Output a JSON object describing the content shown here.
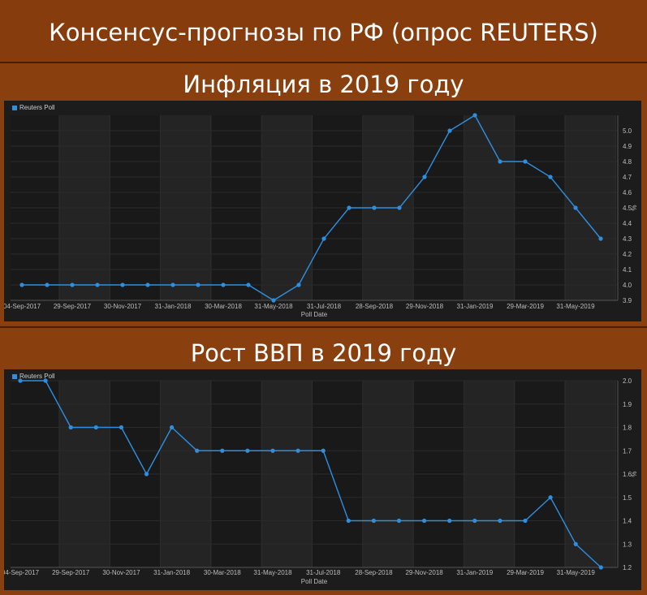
{
  "header": {
    "title": "Консенсус-прогнозы по РФ (опрос REUTERS)"
  },
  "chart_data": [
    {
      "type": "line",
      "title": "Инфляция в 2019 году",
      "xlabel": "Poll Date",
      "ylabel": "%",
      "legend": "top-left",
      "series": [
        {
          "name": "Reuters Poll",
          "color": "#2e8fe0",
          "values": [
            4.0,
            4.0,
            4.0,
            4.0,
            4.0,
            4.0,
            4.0,
            4.0,
            4.0,
            4.0,
            3.9,
            4.0,
            4.3,
            4.5,
            4.5,
            4.5,
            4.7,
            5.0,
            5.1,
            4.8,
            4.8,
            4.7,
            4.5,
            4.3
          ]
        }
      ],
      "x_tick_labels": [
        "04-Sep-2017",
        "29-Sep-2017",
        "30-Nov-2017",
        "31-Jan-2018",
        "30-Mar-2018",
        "31-May-2018",
        "31-Jul-2018",
        "28-Sep-2018",
        "29-Nov-2018",
        "31-Jan-2019",
        "29-Mar-2019",
        "31-May-2019"
      ],
      "y_ticks": [
        3.9,
        4.0,
        4.1,
        4.2,
        4.3,
        4.4,
        4.5,
        4.6,
        4.7,
        4.8,
        4.9,
        5.0
      ],
      "ylim": [
        3.9,
        5.1
      ]
    },
    {
      "type": "line",
      "title": "Рост ВВП в 2019 году",
      "xlabel": "Poll Date",
      "ylabel": "%",
      "legend": "top-left",
      "series": [
        {
          "name": "Reuters Poll",
          "color": "#2e8fe0",
          "values": [
            2.0,
            2.0,
            1.8,
            1.8,
            1.8,
            1.6,
            1.8,
            1.7,
            1.7,
            1.7,
            1.7,
            1.7,
            1.7,
            1.4,
            1.4,
            1.4,
            1.4,
            1.4,
            1.4,
            1.4,
            1.4,
            1.5,
            1.3,
            1.2
          ]
        }
      ],
      "x_tick_labels": [
        "04-Sep-2017",
        "29-Sep-2017",
        "30-Nov-2017",
        "31-Jan-2018",
        "30-Mar-2018",
        "31-May-2018",
        "31-Jul-2018",
        "28-Sep-2018",
        "29-Nov-2018",
        "31-Jan-2019",
        "29-Mar-2019",
        "31-May-2019"
      ],
      "y_ticks": [
        1.2,
        1.3,
        1.4,
        1.5,
        1.6,
        1.7,
        1.8,
        1.9,
        2.0
      ],
      "ylim": [
        1.2,
        2.0
      ]
    }
  ]
}
